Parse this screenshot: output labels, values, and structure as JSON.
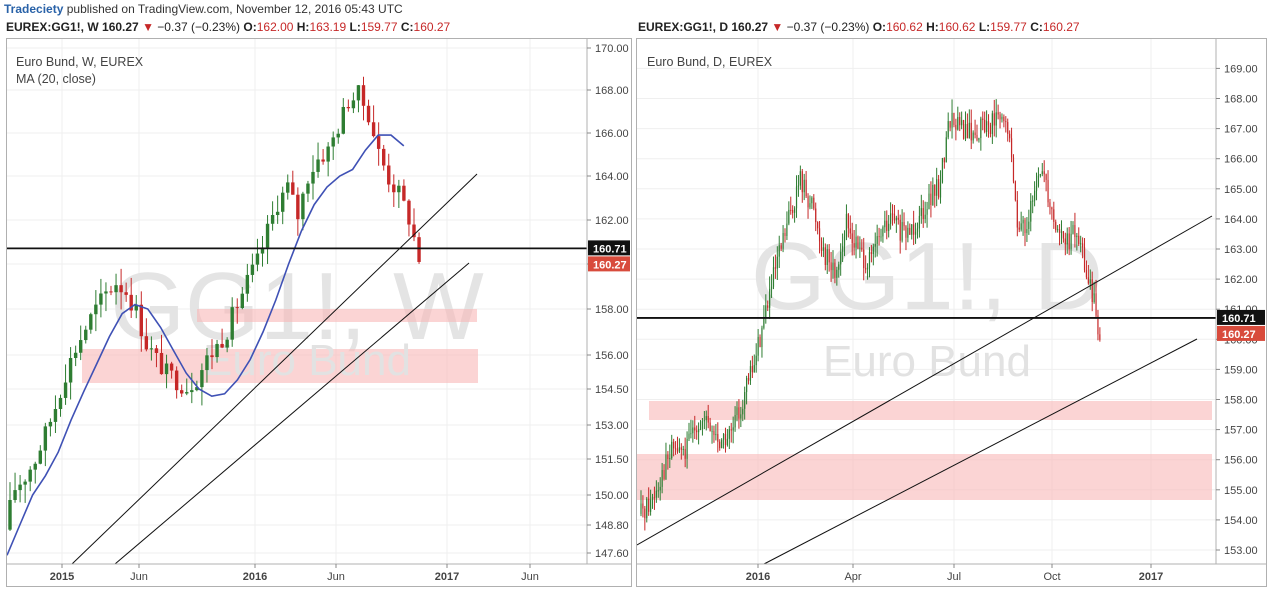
{
  "header": {
    "author": "Tradeciety",
    "published": "published on TradingView.com, November 12, 2016 05:43 UTC"
  },
  "colors": {
    "up": "#2e7d32",
    "down": "#c62828",
    "ma": "#3f51b5",
    "zone": "#f9b7b7",
    "watermark": "#e3e3e3",
    "price_tag": "#d84b3c"
  },
  "charts": {
    "weekly": {
      "symbol": "EUREX:GG1!, W",
      "last": "160.27",
      "change": "−0.37 (−0.23%)",
      "o_label": "O:",
      "o": "162.00",
      "h_label": "H:",
      "h": "163.19",
      "l_label": "L:",
      "l": "159.77",
      "c_label": "C:",
      "c": "160.27",
      "title": "Euro Bund, W, EUREX",
      "indicator": "MA (20, close)",
      "watermark_big": "GG1!, W",
      "watermark_small": "Euro Bund"
    },
    "daily": {
      "symbol": "EUREX:GG1!, D",
      "last": "160.27",
      "change": "−0.37 (−0.23%)",
      "o_label": "O:",
      "o": "160.62",
      "h_label": "H:",
      "h": "160.62",
      "l_label": "L:",
      "l": "159.77",
      "c_label": "C:",
      "c": "160.27",
      "title": "Euro Bund, D, EUREX",
      "watermark_big": "GG1!, D",
      "watermark_small": "Euro Bund"
    }
  },
  "chart_data": [
    {
      "type": "candlestick",
      "title": "Euro Bund, W, EUREX",
      "y_ticks": [
        "147.60",
        "148.80",
        "150.00",
        "151.50",
        "153.00",
        "154.50",
        "156.00",
        "158.00",
        "160.00",
        "162.00",
        "164.00",
        "166.00",
        "168.00",
        "170.00"
      ],
      "x_ticks": [
        "2015",
        "Jun",
        "2016",
        "Jun",
        "2017",
        "Jun"
      ],
      "horizontal_line": 160.71,
      "price_labels": [
        "160.71",
        "160.27"
      ],
      "zones": [
        [
          157.6,
          158.2
        ],
        [
          154.7,
          156.2
        ]
      ],
      "series": [
        {
          "name": "MA (20, close)",
          "values": [
            147.5,
            148.8,
            150.0,
            150.8,
            151.8,
            153.2,
            154.4,
            155.6,
            156.8,
            157.8,
            158.2,
            158.0,
            157.2,
            156.2,
            155.2,
            154.5,
            154.2,
            154.3,
            154.9,
            155.8,
            157.0,
            158.4,
            160.0,
            161.5,
            162.7,
            163.5,
            164.0,
            164.3,
            165.2,
            165.9,
            165.9,
            165.4
          ]
        },
        {
          "name": "candles",
          "close": [
            150.3,
            150.8,
            151.5,
            152.6,
            153.8,
            155.2,
            156.3,
            157.2,
            158.0,
            158.7,
            159.2,
            158.8,
            157.9,
            156.5,
            155.8,
            155.2,
            154.9,
            154.6,
            155.0,
            155.8,
            156.4,
            157.1,
            158.2,
            159.2,
            160.1,
            161.5,
            162.8,
            163.5,
            162.2,
            164.0,
            164.8,
            165.2,
            166.3,
            167.5,
            167.8,
            166.9,
            165.1,
            163.9,
            163.2,
            162.1,
            160.27
          ]
        }
      ]
    },
    {
      "type": "candlestick",
      "title": "Euro Bund, D, EUREX",
      "y_ticks": [
        "153.00",
        "154.00",
        "155.00",
        "156.00",
        "157.00",
        "158.00",
        "159.00",
        "160.00",
        "161.00",
        "162.00",
        "163.00",
        "164.00",
        "165.00",
        "166.00",
        "167.00",
        "168.00",
        "169.00"
      ],
      "x_ticks": [
        "2016",
        "Apr",
        "Jul",
        "Oct",
        "2017"
      ],
      "horizontal_line": 160.71,
      "price_labels": [
        "160.71",
        "160.27"
      ],
      "zones": [
        [
          157.4,
          158.0
        ],
        [
          154.9,
          156.2
        ]
      ],
      "series": [
        {
          "name": "candles",
          "close": [
            154.6,
            155.6,
            156.4,
            156.2,
            157.3,
            157.1,
            156.6,
            156.8,
            158.0,
            159.2,
            161.0,
            162.5,
            164.0,
            165.3,
            164.5,
            163.0,
            162.2,
            163.8,
            163.0,
            162.5,
            163.5,
            164.0,
            163.4,
            163.9,
            164.6,
            165.0,
            167.4,
            167.0,
            166.8,
            167.1,
            167.3,
            167.0,
            163.5,
            164.2,
            165.8,
            164.0,
            163.2,
            163.5,
            162.0,
            160.27
          ]
        }
      ]
    }
  ]
}
